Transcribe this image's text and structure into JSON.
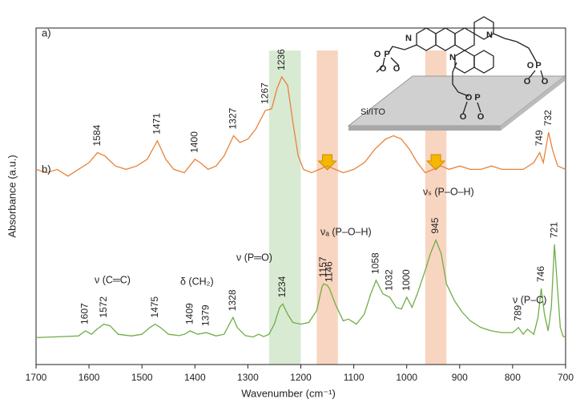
{
  "chart_data": {
    "type": "line",
    "x_label": "Wavenumber (cm⁻¹)",
    "y_label": "Absorbance (a.u.)",
    "xlim": [
      1700,
      700
    ],
    "xticks": [
      1700,
      1600,
      1500,
      1400,
      1300,
      1200,
      1100,
      1000,
      900,
      800,
      700
    ],
    "ylim": [
      0,
      100
    ],
    "bands": [
      {
        "range": [
          1260,
          1200
        ],
        "color": "#d9ead3"
      },
      {
        "range": [
          1170,
          1130
        ],
        "color": "#f8d5c0"
      },
      {
        "range": [
          965,
          925
        ],
        "color": "#f8d5c0"
      }
    ],
    "series": [
      {
        "name": "a)",
        "color": "#e8823a",
        "x": [
          1700,
          1680,
          1660,
          1640,
          1620,
          1600,
          1584,
          1570,
          1550,
          1530,
          1510,
          1490,
          1471,
          1455,
          1440,
          1420,
          1400,
          1390,
          1375,
          1360,
          1345,
          1327,
          1315,
          1300,
          1285,
          1267,
          1255,
          1245,
          1236,
          1225,
          1215,
          1205,
          1195,
          1180,
          1165,
          1150,
          1135,
          1120,
          1100,
          1080,
          1060,
          1040,
          1025,
          1010,
          995,
          980,
          965,
          950,
          935,
          920,
          900,
          880,
          860,
          840,
          820,
          800,
          780,
          760,
          749,
          742,
          732,
          725,
          715,
          700
        ],
        "values": [
          58,
          57,
          58,
          56,
          58,
          60,
          63,
          62,
          59,
          58,
          59,
          61,
          66.5,
          61,
          58,
          57,
          61,
          60,
          58,
          59,
          62,
          68,
          66,
          67,
          70,
          75.5,
          76,
          82,
          85.5,
          83,
          72,
          62,
          58,
          57,
          58,
          59,
          58,
          57,
          58,
          60,
          64,
          67,
          68,
          67,
          64,
          60,
          57,
          58,
          59,
          58,
          59,
          58,
          58,
          59,
          58,
          58,
          58,
          60,
          63,
          60,
          69,
          64,
          59,
          58
        ],
        "peaks": [
          1584,
          1471,
          1400,
          1327,
          1267,
          1236,
          749,
          732
        ]
      },
      {
        "name": "b)",
        "color": "#70ad47",
        "x": [
          1700,
          1650,
          1620,
          1607,
          1595,
          1585,
          1572,
          1560,
          1545,
          1520,
          1500,
          1485,
          1475,
          1465,
          1450,
          1430,
          1420,
          1409,
          1395,
          1379,
          1360,
          1345,
          1335,
          1328,
          1320,
          1305,
          1290,
          1280,
          1270,
          1260,
          1250,
          1240,
          1234,
          1225,
          1215,
          1200,
          1185,
          1170,
          1160,
          1157,
          1150,
          1146,
          1135,
          1120,
          1110,
          1095,
          1080,
          1068,
          1058,
          1045,
          1032,
          1020,
          1010,
          1000,
          990,
          980,
          965,
          955,
          945,
          935,
          925,
          910,
          895,
          880,
          860,
          840,
          820,
          800,
          789,
          780,
          772,
          760,
          752,
          746,
          740,
          733,
          727,
          721,
          715,
          710,
          705,
          700
        ],
        "values": [
          8,
          8.3,
          8.5,
          10,
          9,
          10.5,
          12,
          11.5,
          9,
          8.5,
          9,
          11,
          12,
          11,
          9,
          8.6,
          9,
          10,
          9,
          9.5,
          8.5,
          9,
          12,
          14,
          11,
          8.6,
          8.2,
          9,
          8.3,
          9,
          12,
          17,
          18,
          15,
          12.5,
          12,
          12.5,
          16,
          23,
          24,
          23.5,
          22.6,
          18,
          13,
          13.5,
          12,
          15,
          21,
          25,
          21,
          20,
          17,
          16.5,
          20,
          17,
          21,
          28,
          33,
          37,
          33,
          24,
          19,
          15.5,
          13,
          11,
          10,
          9.5,
          9.5,
          11,
          9,
          10.5,
          9,
          14,
          22.6,
          15,
          10,
          17,
          35.7,
          22,
          11,
          8.5,
          8
        ],
        "peaks": [
          1607,
          1572,
          1475,
          1409,
          1379,
          1328,
          1234,
          1157,
          1146,
          1058,
          1032,
          1000,
          945,
          789,
          746,
          721
        ]
      }
    ],
    "annotations": [
      {
        "text": "ν (C═C)",
        "color": "#000000"
      },
      {
        "text": "δ (CH₂)",
        "color": "#000000"
      },
      {
        "text": "ν (P═O)",
        "color": "#e02020"
      },
      {
        "text": "νₐ (P–O–H)",
        "color": "#e02020"
      },
      {
        "text": "νₛ (P–O–H)",
        "color": "#e02020"
      },
      {
        "text": "ν (P–C)",
        "color": "#000000"
      }
    ],
    "inset": {
      "substrate": "Si/ITO",
      "atoms": [
        "O",
        "P",
        "O",
        "O",
        "N",
        "N",
        "N",
        "O",
        "P",
        "O",
        "O",
        "O",
        "P",
        "O",
        "O"
      ]
    }
  }
}
